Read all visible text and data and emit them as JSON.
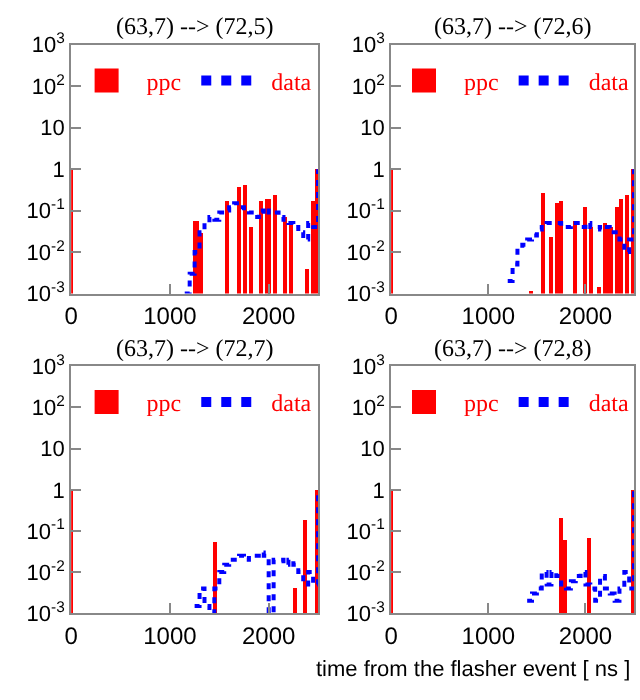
{
  "chart_data": [
    {
      "type": "bar",
      "title": "(63,7) --> (72,5)",
      "log": "y",
      "legend": "top",
      "xlim": [
        0,
        2500
      ],
      "xticks": [
        0,
        1000,
        2000
      ],
      "ylim": [
        0.001,
        1000
      ],
      "yticks": [
        {
          "value": 1000,
          "label": "10$^{3}$"
        },
        {
          "value": 100,
          "label": "10$^{2}$"
        },
        10,
        1,
        {
          "value": 0.1,
          "label": "10$^{-1}$"
        },
        {
          "value": 0.01,
          "label": "10$^{-2}$"
        },
        {
          "value": 0.001,
          "label": "10$^{-3}$"
        }
      ],
      "series": [
        {
          "name": "ppc",
          "color": "#ff0000",
          "x": [
            0,
            1270,
            1320,
            1590,
            1700,
            1760,
            1820,
            1930,
            2000,
            2070,
            2170,
            2240,
            2400,
            2450,
            2500
          ],
          "values": [
            1,
            0.06,
            0.03,
            0.17,
            0.37,
            0.4,
            0.04,
            0.17,
            0.2,
            0.24,
            0.07,
            0.05,
            0.004,
            0.17,
            1
          ]
        },
        {
          "name": "data",
          "type": "step",
          "color": "#0000ff",
          "line_style": "dotted",
          "x": [
            1150,
            1200,
            1250,
            1300,
            1350,
            1400,
            1450,
            1500,
            1550,
            1600,
            1650,
            1700,
            1750,
            1800,
            1850,
            1900,
            1950,
            2000,
            2050,
            2100,
            2150,
            2200,
            2250,
            2300,
            2350,
            2400,
            2450,
            2500
          ],
          "values": [
            0.001,
            0.003,
            0.01,
            0.03,
            0.05,
            0.07,
            0.06,
            0.09,
            0.1,
            0.12,
            0.15,
            0.12,
            0.1,
            0.09,
            0.07,
            0.1,
            0.08,
            0.1,
            0.09,
            0.07,
            0.06,
            0.05,
            0.04,
            0.03,
            0.02,
            0.05,
            0.04,
            1
          ]
        }
      ]
    },
    {
      "type": "bar",
      "title": "(63,7) --> (72,6)",
      "log": "y",
      "legend": "top",
      "xlim": [
        0,
        2500
      ],
      "xticks": [
        0,
        1000,
        2000
      ],
      "ylim": [
        0.001,
        1000
      ],
      "yticks": [
        {
          "value": 1000,
          "label": "10$^{3}$"
        },
        {
          "value": 100,
          "label": "10$^{2}$"
        },
        10,
        1,
        {
          "value": 0.1,
          "label": "10$^{-1}$"
        },
        {
          "value": 0.01,
          "label": "10$^{-2}$"
        },
        {
          "value": 0.001,
          "label": "10$^{-3}$"
        }
      ],
      "series": [
        {
          "name": "ppc",
          "color": "#ff0000",
          "x": [
            0,
            1450,
            1570,
            1650,
            1720,
            1760,
            1900,
            2000,
            2060,
            2150,
            2200,
            2260,
            2330,
            2380,
            2430,
            2500
          ],
          "values": [
            1,
            0.0012,
            0.26,
            0.024,
            0.16,
            0.17,
            0.06,
            0.12,
            0.04,
            0.0015,
            0.05,
            0.04,
            0.12,
            0.2,
            0.24,
            1
          ]
        },
        {
          "name": "data",
          "type": "step",
          "color": "#0000ff",
          "line_style": "dotted",
          "x": [
            1200,
            1250,
            1300,
            1350,
            1400,
            1450,
            1500,
            1550,
            1600,
            1650,
            1700,
            1750,
            1800,
            1850,
            1900,
            1950,
            2000,
            2050,
            2100,
            2150,
            2200,
            2250,
            2300,
            2350,
            2400,
            2450,
            2500
          ],
          "values": [
            0.002,
            0.005,
            0.012,
            0.015,
            0.02,
            0.025,
            0.035,
            0.04,
            0.05,
            0.05,
            0.05,
            0.04,
            0.04,
            0.05,
            0.05,
            0.04,
            0.05,
            0.04,
            0.04,
            0.035,
            0.04,
            0.03,
            0.03,
            0.02,
            0.01,
            0.02,
            1
          ]
        }
      ]
    },
    {
      "type": "bar",
      "title": "(63,7) --> (72,7)",
      "log": "y",
      "legend": "top",
      "xlim": [
        0,
        2500
      ],
      "xticks": [
        0,
        1000,
        2000
      ],
      "ylim": [
        0.001,
        1000
      ],
      "yticks": [
        {
          "value": 1000,
          "label": "10$^{3}$"
        },
        {
          "value": 100,
          "label": "10$^{2}$"
        },
        10,
        1,
        {
          "value": 0.1,
          "label": "10$^{-1}$"
        },
        {
          "value": 0.01,
          "label": "10$^{-2}$"
        },
        {
          "value": 0.001,
          "label": "10$^{-3}$"
        }
      ],
      "series": [
        {
          "name": "ppc",
          "color": "#ff0000",
          "x": [
            0,
            1470,
            2270,
            2370,
            2500
          ],
          "values": [
            1,
            0.055,
            0.004,
            0.19,
            1
          ]
        },
        {
          "name": "data",
          "type": "step",
          "color": "#0000ff",
          "line_style": "dotted",
          "x": [
            1250,
            1300,
            1350,
            1400,
            1450,
            1500,
            1550,
            1600,
            1650,
            1700,
            1750,
            1800,
            1850,
            1900,
            1950,
            2000,
            2050,
            2100,
            2150,
            2200,
            2250,
            2300,
            2350,
            2400,
            2450,
            2500
          ],
          "values": [
            0.0015,
            0.004,
            0.0015,
            0.001,
            0.004,
            0.01,
            0.015,
            0.02,
            0.02,
            0.025,
            0.02,
            0.025,
            0.025,
            0.03,
            0.025,
            0.001,
            0.02,
            0.02,
            0.015,
            0.02,
            0.015,
            0.01,
            0.005,
            0.01,
            0.005,
            1
          ]
        }
      ]
    },
    {
      "type": "bar",
      "title": "(63,7) --> (72,8)",
      "xlabel": "time from the flasher event [ ns ]",
      "log": "y",
      "legend": "top",
      "xlim": [
        0,
        2500
      ],
      "xticks": [
        0,
        1000,
        2000
      ],
      "ylim": [
        0.001,
        1000
      ],
      "yticks": [
        {
          "value": 1000,
          "label": "10$^{3}$"
        },
        {
          "value": 100,
          "label": "10$^{2}$"
        },
        10,
        1,
        {
          "value": 0.1,
          "label": "10$^{-1}$"
        },
        {
          "value": 0.01,
          "label": "10$^{-2}$"
        },
        {
          "value": 0.001,
          "label": "10$^{-3}$"
        }
      ],
      "series": [
        {
          "name": "ppc",
          "color": "#ff0000",
          "x": [
            0,
            1750,
            1790,
            2050,
            2500
          ],
          "values": [
            1,
            0.2,
            0.06,
            0.07,
            1
          ]
        },
        {
          "name": "data",
          "type": "step",
          "color": "#0000ff",
          "line_style": "dotted",
          "x": [
            1400,
            1450,
            1500,
            1550,
            1600,
            1650,
            1700,
            1750,
            1800,
            1850,
            1900,
            1950,
            2000,
            2050,
            2100,
            2150,
            2200,
            2250,
            2300,
            2350,
            2400,
            2450,
            2500
          ],
          "values": [
            0.002,
            0.003,
            0.004,
            0.01,
            0.005,
            0.01,
            0.008,
            0.005,
            0.004,
            0.006,
            0.008,
            0.01,
            0.005,
            0.004,
            0.002,
            0.008,
            0.004,
            0.003,
            0.002,
            0.004,
            0.01,
            0.004,
            1
          ]
        }
      ]
    }
  ]
}
